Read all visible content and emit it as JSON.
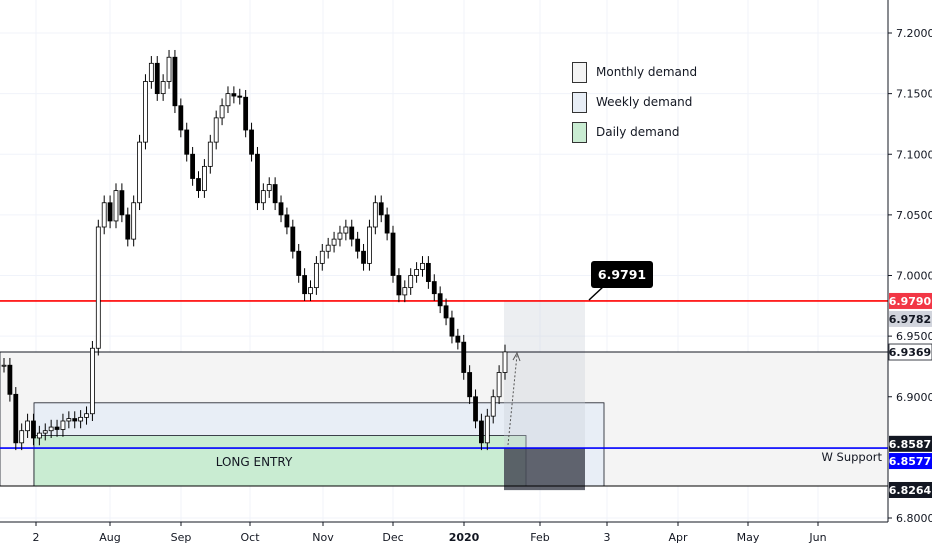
{
  "chart_data": {
    "type": "candlestick",
    "symbol_pair_note": "",
    "x_tick_labels": [
      "2",
      "Aug",
      "Sep",
      "Oct",
      "Nov",
      "Dec",
      "2020",
      "Feb",
      "3",
      "Apr",
      "May",
      "Jun"
    ],
    "y_tick_labels": [
      "7.2000",
      "7.1500",
      "7.1000",
      "7.0500",
      "7.0000",
      "6.9500",
      "6.9000",
      "6.8000"
    ],
    "ylim": [
      6.79,
      7.23
    ],
    "grid": true,
    "price_levels": [
      {
        "value": 6.979,
        "label": "6.9790",
        "color": "#ff0000",
        "style": "solid-line",
        "badge_color": "#f23645"
      },
      {
        "value": 6.9782,
        "label": "6.9782",
        "color": "#d1d4dc",
        "style": "label-only",
        "badge_color": "#d1d4dc"
      },
      {
        "value": 6.9369,
        "label": "6.9369",
        "color": "#131722",
        "style": "thin-line",
        "badge_color": "#ffffff"
      },
      {
        "value": 6.8587,
        "label": "6.8587",
        "color": "#000000",
        "style": "label-only",
        "badge_color": "#131722"
      },
      {
        "value": 6.8577,
        "label": "6.8577",
        "color": "#0000ff",
        "style": "solid-line",
        "badge_color": "#0000ff"
      },
      {
        "value": 6.8264,
        "label": "6.8264",
        "color": "#000000",
        "style": "thin-line",
        "badge_color": "#131722"
      }
    ],
    "zones": [
      {
        "name": "Monthly demand",
        "top": 6.9369,
        "bottom": 6.8264,
        "color": "#f4f4f4"
      },
      {
        "name": "Weekly demand",
        "top": 6.895,
        "bottom": 6.8264,
        "color": "#e8eef6"
      },
      {
        "name": "Daily demand",
        "top": 6.868,
        "bottom": 6.8264,
        "color": "#c9ecd2",
        "label": "LONG ENTRY"
      }
    ],
    "position_box": {
      "top": 6.979,
      "bottom": 6.823
    },
    "annotations": {
      "callout": "6.9791",
      "support_label": "W Support"
    },
    "legend": [
      {
        "label": "Monthly demand",
        "color": "#f4f4f4"
      },
      {
        "label": "Weekly demand",
        "color": "#e8eef6"
      },
      {
        "label": "Daily demand",
        "color": "#c9ecd2"
      }
    ],
    "closes": [
      6.926,
      6.902,
      6.862,
      6.872,
      6.88,
      6.866,
      6.87,
      6.872,
      6.875,
      6.873,
      6.88,
      6.882,
      6.88,
      6.883,
      6.886,
      6.94,
      7.04,
      7.06,
      7.045,
      7.07,
      7.05,
      7.03,
      7.06,
      7.11,
      7.16,
      7.175,
      7.15,
      7.16,
      7.18,
      7.14,
      7.12,
      7.1,
      7.08,
      7.07,
      7.09,
      7.11,
      7.13,
      7.14,
      7.15,
      7.148,
      7.147,
      7.12,
      7.1,
      7.06,
      7.07,
      7.075,
      7.06,
      7.05,
      7.04,
      7.02,
      7.0,
      6.985,
      6.99,
      7.01,
      7.02,
      7.025,
      7.03,
      7.035,
      7.04,
      7.03,
      7.02,
      7.01,
      7.04,
      7.06,
      7.05,
      7.035,
      7.0,
      6.984,
      6.99,
      7.0,
      7.005,
      7.01,
      6.995,
      6.985,
      6.975,
      6.965,
      6.95,
      6.945,
      6.92,
      6.9,
      6.88,
      6.862,
      6.884,
      6.9,
      6.92,
      6.937
    ]
  }
}
